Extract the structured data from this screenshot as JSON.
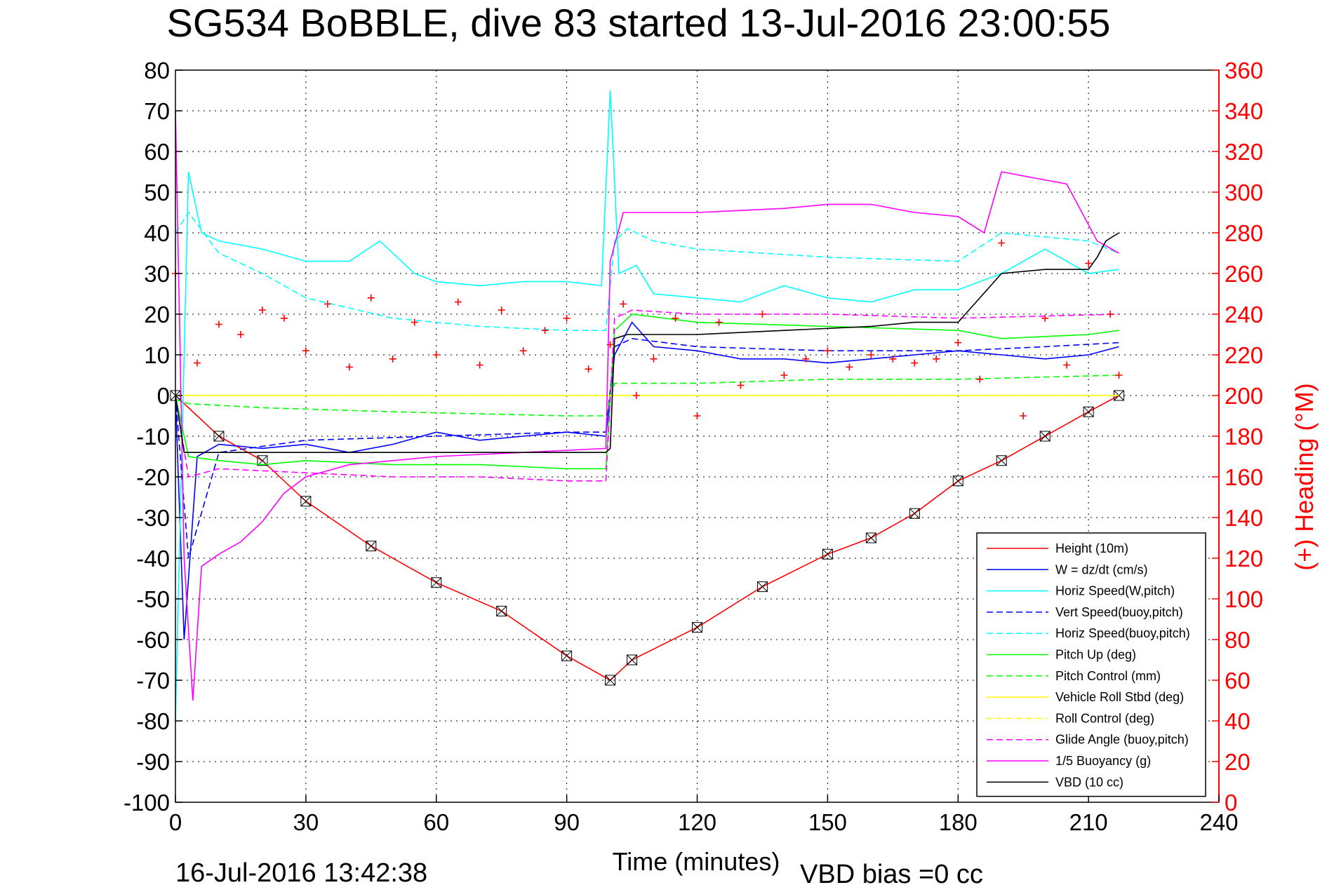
{
  "chart_data": {
    "type": "line",
    "title": "SG534 BoBBLE, dive 83 started 13-Jul-2016 23:00:55",
    "xlabel": "Time (minutes)",
    "ylabel_right": "(+) Heading (°M)",
    "xlim": [
      0,
      240
    ],
    "ylim_left": [
      -100,
      80
    ],
    "ylim_right": [
      0,
      360
    ],
    "x_ticks": [
      0,
      30,
      60,
      90,
      120,
      150,
      180,
      210,
      240
    ],
    "y_ticks_left": [
      80,
      70,
      60,
      50,
      40,
      30,
      20,
      10,
      0,
      -10,
      -20,
      -30,
      -40,
      -50,
      -60,
      -70,
      -80,
      -90,
      -100
    ],
    "y_ticks_right": [
      360,
      340,
      320,
      300,
      280,
      260,
      240,
      220,
      200,
      180,
      160,
      140,
      120,
      100,
      80,
      60,
      40,
      20,
      0
    ],
    "grid": true,
    "legend_position": "bottom-right",
    "footer_left": "16-Jul-2016 13:42:38",
    "footer_right": "VBD bias =0 cc",
    "series": [
      {
        "name": "Height (10m)",
        "color": "#ff0000",
        "style": "solid",
        "x": [
          0,
          10,
          20,
          30,
          45,
          60,
          75,
          90,
          100,
          105,
          120,
          135,
          150,
          160,
          170,
          180,
          190,
          200,
          210,
          217
        ],
        "y": [
          0,
          -10,
          -16,
          -26,
          -37,
          -46,
          -53,
          -64,
          -70,
          -65,
          -57,
          -47,
          -39,
          -35,
          -29,
          -21,
          -16,
          -10,
          -4,
          0
        ]
      },
      {
        "name": "W = dz/dt (cm/s)",
        "color": "#0000ff",
        "style": "solid",
        "x": [
          0,
          2,
          5,
          10,
          20,
          30,
          40,
          50,
          60,
          70,
          80,
          90,
          99,
          101,
          105,
          110,
          120,
          130,
          140,
          150,
          160,
          170,
          180,
          190,
          200,
          210,
          217
        ],
        "y": [
          0,
          -60,
          -15,
          -12,
          -13,
          -12,
          -14,
          -12,
          -9,
          -11,
          -10,
          -9,
          -10,
          10,
          18,
          12,
          11,
          9,
          9,
          8,
          9,
          10,
          11,
          10,
          9,
          10,
          12
        ]
      },
      {
        "name": "Horiz Speed(W,pitch)",
        "color": "#00ffff",
        "style": "solid",
        "x": [
          0,
          3,
          6,
          10,
          20,
          30,
          40,
          47,
          55,
          60,
          70,
          80,
          90,
          98,
          100,
          102,
          106,
          110,
          120,
          130,
          140,
          150,
          160,
          170,
          180,
          190,
          200,
          210,
          217
        ],
        "y": [
          -80,
          55,
          40,
          38,
          36,
          33,
          33,
          38,
          30,
          28,
          27,
          28,
          28,
          27,
          75,
          30,
          32,
          25,
          24,
          23,
          27,
          24,
          23,
          26,
          26,
          30,
          36,
          30,
          31
        ]
      },
      {
        "name": "Vert Speed(buoy,pitch)",
        "color": "#0000ff",
        "style": "dashed",
        "x": [
          0,
          3,
          10,
          30,
          60,
          90,
          99,
          101,
          105,
          120,
          150,
          180,
          200,
          217
        ],
        "y": [
          0,
          -40,
          -14,
          -11,
          -10,
          -9,
          -9,
          12,
          14,
          12,
          11,
          11,
          12,
          13
        ]
      },
      {
        "name": "Horiz Speed(buoy,pitch)",
        "color": "#00ffff",
        "style": "dashed",
        "x": [
          0,
          3,
          10,
          20,
          30,
          50,
          70,
          90,
          99,
          101,
          104,
          110,
          120,
          150,
          180,
          190,
          210,
          217
        ],
        "y": [
          40,
          45,
          35,
          30,
          24,
          19,
          17,
          16,
          16,
          38,
          41,
          38,
          36,
          34,
          33,
          40,
          38,
          35
        ]
      },
      {
        "name": "Pitch Up (deg)",
        "color": "#00ff00",
        "style": "solid",
        "x": [
          0,
          3,
          10,
          20,
          30,
          50,
          70,
          90,
          99,
          101,
          105,
          120,
          150,
          180,
          190,
          210,
          217
        ],
        "y": [
          0,
          -15,
          -16,
          -17,
          -16,
          -17,
          -17,
          -18,
          -18,
          16,
          20,
          18,
          17,
          16,
          14,
          15,
          16
        ]
      },
      {
        "name": "Pitch Control (mm)",
        "color": "#00ff00",
        "style": "dashed",
        "x": [
          0,
          3,
          20,
          50,
          90,
          99,
          101,
          120,
          150,
          180,
          217
        ],
        "y": [
          -1,
          -2,
          -3,
          -4,
          -5,
          -5,
          3,
          3,
          4,
          4,
          5
        ]
      },
      {
        "name": "Vehicle Roll Stbd (deg)",
        "color": "#ffff00",
        "style": "solid",
        "x": [
          0,
          20,
          40,
          60,
          80,
          99,
          101,
          120,
          150,
          180,
          200,
          217
        ],
        "y": [
          0,
          0,
          0,
          0,
          0,
          0,
          0,
          0,
          0,
          0,
          0,
          0
        ]
      },
      {
        "name": "Roll Control (deg)",
        "color": "#ffff00",
        "style": "dashed",
        "x": [
          0,
          20,
          40,
          60,
          80,
          99,
          101,
          120,
          150,
          180,
          217
        ],
        "y": [
          0,
          0,
          0,
          0,
          0,
          0,
          0,
          0,
          0,
          0,
          0
        ]
      },
      {
        "name": "Glide Angle (buoy,pitch)",
        "color": "#ff00ff",
        "style": "dashed",
        "x": [
          0,
          3,
          10,
          30,
          50,
          70,
          90,
          99,
          101,
          105,
          120,
          150,
          180,
          217
        ],
        "y": [
          0,
          -20,
          -18,
          -19,
          -20,
          -20,
          -21,
          -21,
          19,
          21,
          20,
          20,
          19,
          20
        ]
      },
      {
        "name": "1/5 Buoyancy (g)",
        "color": "#ff00ff",
        "style": "solid",
        "x": [
          0,
          2,
          4,
          6,
          10,
          15,
          20,
          25,
          30,
          40,
          60,
          80,
          99,
          100,
          103,
          120,
          140,
          150,
          160,
          170,
          180,
          186,
          190,
          195,
          205,
          212,
          217
        ],
        "y": [
          70,
          -40,
          -75,
          -42,
          -39,
          -36,
          -31,
          -24,
          -20,
          -17,
          -15,
          -14,
          -13,
          33,
          45,
          45,
          46,
          47,
          47,
          45,
          44,
          40,
          55,
          54,
          52,
          38,
          35
        ]
      },
      {
        "name": "VBD (10 cc)",
        "color": "#000000",
        "style": "solid",
        "x": [
          0,
          2,
          10,
          20,
          30,
          50,
          70,
          90,
          99,
          100,
          101,
          104,
          120,
          140,
          160,
          170,
          180,
          190,
          200,
          210,
          212,
          214,
          217
        ],
        "y": [
          0,
          -14,
          -14,
          -14,
          -14,
          -14,
          -14,
          -14,
          -14,
          -13,
          14,
          15,
          15,
          16,
          17,
          18,
          18,
          30,
          31,
          31,
          34,
          38,
          40
        ]
      },
      {
        "name": "Heading",
        "color": "#ff0000",
        "style": "markers",
        "axis": "right",
        "x": [
          0,
          5,
          10,
          15,
          20,
          25,
          30,
          35,
          40,
          45,
          50,
          55,
          60,
          65,
          70,
          75,
          80,
          85,
          90,
          95,
          100,
          103,
          106,
          110,
          115,
          120,
          125,
          130,
          135,
          140,
          145,
          150,
          155,
          160,
          165,
          170,
          175,
          180,
          185,
          190,
          195,
          200,
          205,
          210,
          215,
          217
        ],
        "y": [
          260,
          216,
          235,
          230,
          242,
          238,
          222,
          245,
          214,
          248,
          218,
          236,
          220,
          246,
          215,
          242,
          222,
          232,
          238,
          213,
          225,
          245,
          200,
          218,
          238,
          190,
          236,
          205,
          240,
          210,
          218,
          222,
          214,
          220,
          218,
          216,
          218,
          226,
          208,
          275,
          190,
          238,
          215,
          265,
          240,
          210
        ]
      }
    ]
  }
}
